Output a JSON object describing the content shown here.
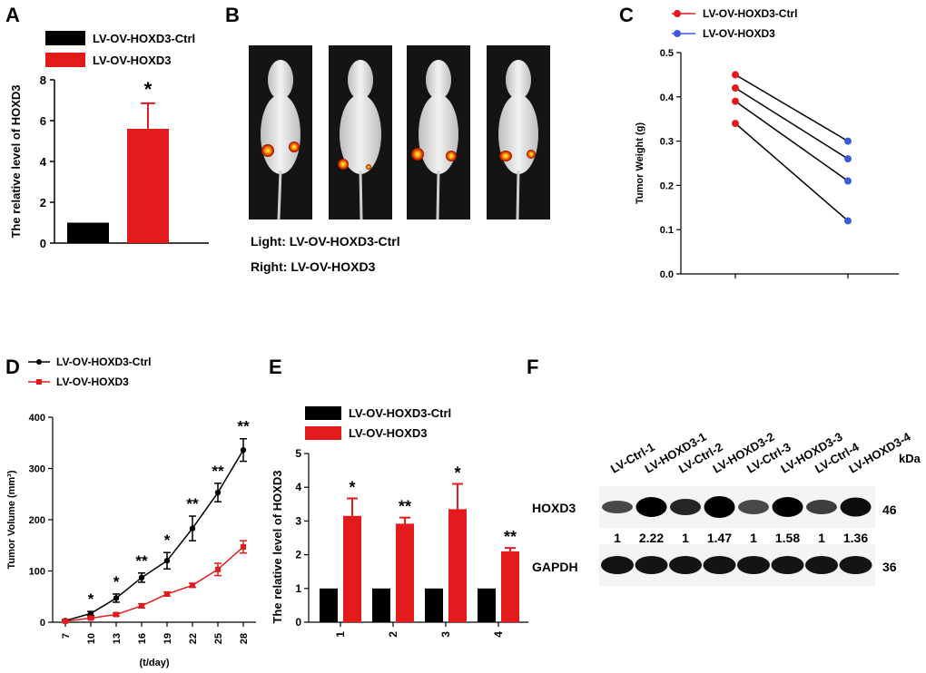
{
  "colors": {
    "ctrl": "#000000",
    "oe": "#e41a1c",
    "blue_dot": "#3b5bdb"
  },
  "legend_labels": {
    "ctrl": "LV-OV-HOXD3-Ctrl",
    "oe": "LV-OV-HOXD3"
  },
  "panel_labels": [
    "A",
    "B",
    "C",
    "D",
    "E",
    "F"
  ],
  "panelB": {
    "caption1": "Light: LV-OV-HOXD3-Ctrl",
    "caption2": "Right: LV-OV-HOXD3"
  },
  "panelF": {
    "lanes": [
      "LV-Ctrl-1",
      "LV-HOXD3-1",
      "LV-Ctrl-2",
      "LV-HOXD3-2",
      "LV-Ctrl-3",
      "LV-HOXD3-3",
      "LV-Ctrl-4",
      "LV-HOXD3-4"
    ],
    "kda_label": "kDa",
    "row1_label": "HOXD3",
    "row1_kda": "46",
    "row2_label": "GAPDH",
    "row2_kda": "36",
    "ratios": [
      "1",
      "2.22",
      "1",
      "1.47",
      "1",
      "1.58",
      "1",
      "1.36"
    ]
  },
  "chart_data": [
    {
      "id": "A",
      "type": "bar",
      "categories": [
        "LV-OV-HOXD3-Ctrl",
        "LV-OV-HOXD3"
      ],
      "values": [
        1.0,
        5.6
      ],
      "errors": [
        0,
        1.25
      ],
      "ylabel": "The relative level of  HOXD3",
      "ylim": [
        0,
        8
      ],
      "yticks": [
        0,
        2,
        4,
        6,
        8
      ],
      "annotations": [
        "",
        "*"
      ]
    },
    {
      "id": "C",
      "type": "scatter",
      "ylabel": "Tumor Weight (g)",
      "ylim": [
        0,
        0.5
      ],
      "yticks": [
        "0.0",
        "0.1",
        "0.2",
        "0.3",
        "0.4",
        "0.5"
      ],
      "series": [
        {
          "name": "LV-OV-HOXD3-Ctrl",
          "values": [
            0.45,
            0.42,
            0.39,
            0.34
          ]
        },
        {
          "name": "LV-OV-HOXD3",
          "values": [
            0.3,
            0.26,
            0.21,
            0.12
          ]
        }
      ]
    },
    {
      "id": "D",
      "type": "line",
      "x": [
        7,
        10,
        13,
        16,
        19,
        22,
        25,
        28
      ],
      "xlabel": "(t/day)",
      "ylabel": "Tumor Volume (mm³)",
      "ylim": [
        0,
        400
      ],
      "yticks": [
        0,
        100,
        200,
        300,
        400
      ],
      "series": [
        {
          "name": "LV-OV-HOXD3-Ctrl",
          "values": [
            3,
            17,
            47,
            87,
            120,
            183,
            253,
            336
          ],
          "errors": [
            2,
            4,
            8,
            9,
            16,
            24,
            18,
            22
          ]
        },
        {
          "name": "LV-OV-HOXD3",
          "values": [
            2,
            8,
            15,
            32,
            55,
            72,
            103,
            147
          ],
          "errors": [
            1,
            2,
            3,
            4,
            4,
            4,
            12,
            12
          ]
        }
      ],
      "annotations": [
        "",
        "*",
        "*",
        "**",
        "*",
        "**",
        "**",
        "**"
      ]
    },
    {
      "id": "E",
      "type": "bar",
      "categories": [
        "1",
        "2",
        "3",
        "4"
      ],
      "ylabel": "The relative level of  HOXD3",
      "ylim": [
        0,
        5
      ],
      "yticks": [
        0,
        1,
        2,
        3,
        4,
        5
      ],
      "series": [
        {
          "name": "LV-OV-HOXD3-Ctrl",
          "values": [
            1,
            1,
            1,
            1
          ],
          "errors": [
            0,
            0,
            0,
            0
          ]
        },
        {
          "name": "LV-OV-HOXD3",
          "values": [
            3.15,
            2.92,
            3.35,
            2.1
          ],
          "errors": [
            0.52,
            0.18,
            0.75,
            0.1
          ]
        }
      ],
      "annotations": [
        "*",
        "**",
        "*",
        "**"
      ]
    }
  ]
}
